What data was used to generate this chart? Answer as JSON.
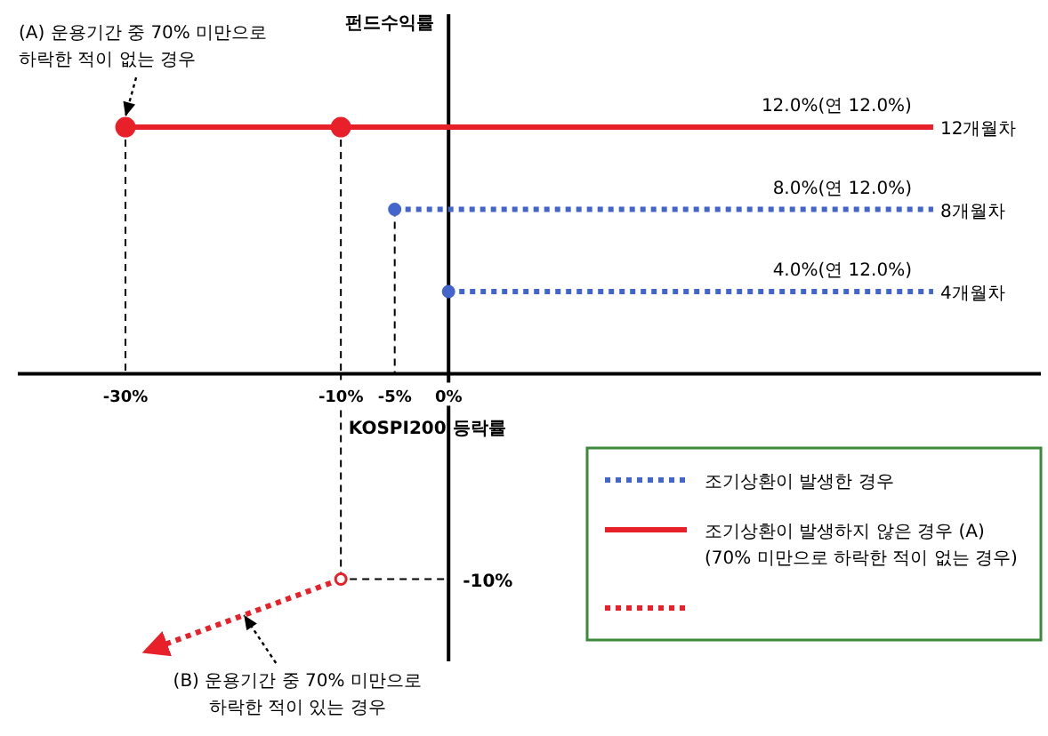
{
  "chart_data": {
    "type": "line",
    "xlabel": "KOSPI200 등락률",
    "ylabel": "펀드수익률",
    "xlim": [
      -40,
      55
    ],
    "ylim": [
      -14,
      17.5
    ],
    "xticks": [
      {
        "value": -30,
        "label": "-30%"
      },
      {
        "value": -10,
        "label": "-10%"
      },
      {
        "value": -5,
        "label": "-5%"
      },
      {
        "value": 0,
        "label": "0%"
      }
    ],
    "grid": "x",
    "legend": "bottom right",
    "marker": "circle",
    "ref_lines": [
      {
        "axis": "y",
        "value": -10,
        "label": "-10%",
        "line_style": "dashed",
        "color": "#000000"
      }
    ],
    "series": [
      {
        "name": "조기상환이 발생한 경우",
        "color": "#4466cc",
        "line_style": "dotted",
        "x": [
          -5,
          45
        ],
        "values": [
          8,
          8
        ],
        "value_labels": [
          null,
          "8.0%(연 12.0%)"
        ]
      },
      {
        "color": "#4466cc",
        "line_style": "dotted",
        "x": [
          0,
          45
        ],
        "values": [
          4,
          4
        ],
        "value_labels": [
          null,
          "4.0%(연 12.0%)"
        ]
      },
      {
        "name": "조기상환이 발생하지 않은 경우 (A)\n(70% 미만으로 하락한 적이 없는 경우)",
        "color": "#e8202a",
        "line_style": "solid",
        "x": [
          -30,
          -10,
          45
        ],
        "values": [
          12,
          12,
          12
        ],
        "value_labels": [
          null,
          null,
          "12.0%(연 12.0%)"
        ]
      },
      {
        "color": "#e8202a",
        "line_style": "dotted",
        "x": [
          -10,
          -28
        ],
        "values": [
          -10,
          -13.5
        ]
      }
    ],
    "annotations": [
      {
        "text": "(A) 운용기간 중 70% 미만으로\n하락한 적이 없는 경우",
        "x": -30,
        "y": 12
      },
      {
        "text": "(B) 운용기간 중 70% 미만으로\n하락한 적이 있는 경우",
        "x": -19,
        "y": -11.75
      },
      {
        "text": "12개월차",
        "x": 45,
        "y": 12
      },
      {
        "text": "8개월차",
        "x": 45,
        "y": 8
      },
      {
        "text": "4개월차",
        "x": 45,
        "y": 4
      }
    ]
  }
}
